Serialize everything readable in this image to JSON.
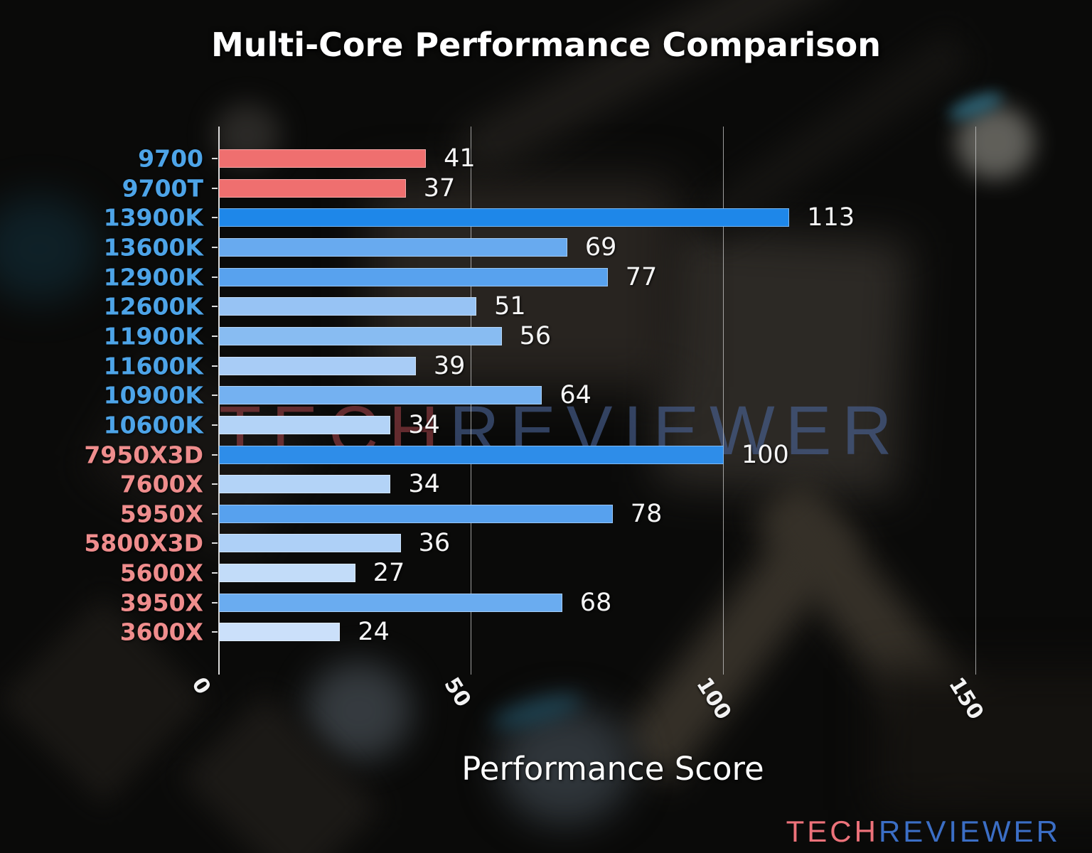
{
  "title": "Multi-Core Performance Comparison",
  "xlabel": "Performance Score",
  "watermark": {
    "tech": "TECH",
    "reviewer": "REVIEWER",
    "tech_color": "#9a4046",
    "reviewer_color": "#4a6396"
  },
  "logo": {
    "tech": "TECH",
    "reviewer": "REVIEWER",
    "tech_color": "#ed727a",
    "reviewer_color": "#3b6ec5"
  },
  "colors": {
    "intel_label": "#4da4e8",
    "amd_label": "#ef8d8d",
    "highlight_bar": "#ef6f6f",
    "value_text": "#f5f5f5",
    "gridline": "#cdcdcd"
  },
  "chart_data": {
    "type": "bar",
    "orientation": "horizontal",
    "title": "Multi-Core Performance Comparison",
    "xlabel": "Performance Score",
    "xlim": [
      0,
      167
    ],
    "x_ticks": [
      0,
      50,
      100,
      150
    ],
    "grid": "vertical",
    "legend": "none",
    "rows": [
      {
        "label": "9700",
        "value": 41,
        "bar_color": "#ef6f6f",
        "label_color": "#4da4e8"
      },
      {
        "label": "9700T",
        "value": 37,
        "bar_color": "#ef6f6f",
        "label_color": "#4da4e8"
      },
      {
        "label": "13900K",
        "value": 113,
        "bar_color": "#1e87e9",
        "label_color": "#4da4e8"
      },
      {
        "label": "13600K",
        "value": 69,
        "bar_color": "#68aaef",
        "label_color": "#4da4e8"
      },
      {
        "label": "12900K",
        "value": 77,
        "bar_color": "#58a2ee",
        "label_color": "#4da4e8"
      },
      {
        "label": "12600K",
        "value": 51,
        "bar_color": "#97c3f4",
        "label_color": "#4da4e8"
      },
      {
        "label": "11900K",
        "value": 56,
        "bar_color": "#88bcf2",
        "label_color": "#4da4e8"
      },
      {
        "label": "11600K",
        "value": 39,
        "bar_color": "#a8ccf6",
        "label_color": "#4da4e8"
      },
      {
        "label": "10900K",
        "value": 64,
        "bar_color": "#74b1f1",
        "label_color": "#4da4e8"
      },
      {
        "label": "10600K",
        "value": 34,
        "bar_color": "#b3d3f7",
        "label_color": "#4da4e8"
      },
      {
        "label": "7950X3D",
        "value": 100,
        "bar_color": "#2e8de9",
        "label_color": "#ef8d8d"
      },
      {
        "label": "7600X",
        "value": 34,
        "bar_color": "#b3d3f7",
        "label_color": "#ef8d8d"
      },
      {
        "label": "5950X",
        "value": 78,
        "bar_color": "#57a1ee",
        "label_color": "#ef8d8d"
      },
      {
        "label": "5800X3D",
        "value": 36,
        "bar_color": "#aed0f7",
        "label_color": "#ef8d8d"
      },
      {
        "label": "5600X",
        "value": 27,
        "bar_color": "#c2dcf9",
        "label_color": "#ef8d8d"
      },
      {
        "label": "3950X",
        "value": 68,
        "bar_color": "#6aacf0",
        "label_color": "#ef8d8d"
      },
      {
        "label": "3600X",
        "value": 24,
        "bar_color": "#cbe0fa",
        "label_color": "#ef8d8d"
      }
    ]
  }
}
